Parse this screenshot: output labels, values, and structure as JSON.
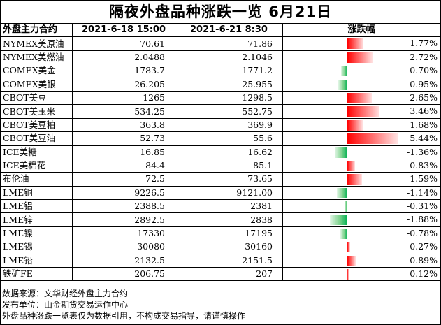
{
  "title": "隔夜外盘品种涨跌一览 6月21日",
  "headers": [
    "外盘主力合约",
    "2021-6-18 15:00",
    "2021-6-21 8:30",
    "涨跌幅"
  ],
  "rows": [
    {
      "name": "NYMEX美原油",
      "prev": "70.61",
      "curr": "71.86",
      "pct": "1.77%"
    },
    {
      "name": "NYMEX美燃油",
      "prev": "2.0488",
      "curr": "2.1046",
      "pct": "2.72%"
    },
    {
      "name": "COMEX美金",
      "prev": "1783.7",
      "curr": "1771.2",
      "pct": "-0.70%"
    },
    {
      "name": "COMEX美银",
      "prev": "26.205",
      "curr": "25.955",
      "pct": "-0.95%"
    },
    {
      "name": "CBOT美豆",
      "prev": "1265",
      "curr": "1298.5",
      "pct": "2.65%"
    },
    {
      "name": "CBOT美玉米",
      "prev": "534.25",
      "curr": "552.75",
      "pct": "3.46%"
    },
    {
      "name": "CBOT美豆粕",
      "prev": "363.8",
      "curr": "369.9",
      "pct": "1.68%"
    },
    {
      "name": "CBOT美豆油",
      "prev": "52.73",
      "curr": "55.6",
      "pct": "5.44%"
    },
    {
      "name": "ICE美糖",
      "prev": "16.85",
      "curr": "16.62",
      "pct": "-1.36%"
    },
    {
      "name": "ICE美棉花",
      "prev": "84.4",
      "curr": "85.1",
      "pct": "0.83%"
    },
    {
      "name": "布伦油",
      "prev": "72.5",
      "curr": "73.65",
      "pct": "1.59%"
    },
    {
      "name": "LME铜",
      "prev": "9226.5",
      "curr": "9121.00",
      "pct": "-1.14%"
    },
    {
      "name": "LME铝",
      "prev": "2388.5",
      "curr": "2381",
      "pct": "-0.31%"
    },
    {
      "name": "LME锌",
      "prev": "2892.5",
      "curr": "2838",
      "pct": "-1.88%"
    },
    {
      "name": "LME镍",
      "prev": "17330",
      "curr": "17195",
      "pct": "-0.78%"
    },
    {
      "name": "LME锡",
      "prev": "30080",
      "curr": "30160",
      "pct": "0.27%"
    },
    {
      "name": "LME铅",
      "prev": "2132.5",
      "curr": "2151.5",
      "pct": "0.89%"
    },
    {
      "name": "铁矿FE",
      "prev": "206.75",
      "curr": "207",
      "pct": "0.12%"
    }
  ],
  "notes": [
    "数据来源：文华财经外盘主力合约",
    "发布单位：山金期货交易运作中心",
    "外盘品种涨跌一览表仅为数据引用，不构成交易指导，请谨慎操作"
  ],
  "chart_data": {
    "type": "bar",
    "title": "隔夜外盘品种涨跌一览 6月21日",
    "categories": [
      "NYMEX美原油",
      "NYMEX美燃油",
      "COMEX美金",
      "COMEX美银",
      "CBOT美豆",
      "CBOT美玉米",
      "CBOT美豆粕",
      "CBOT美豆油",
      "ICE美糖",
      "ICE美棉花",
      "布伦油",
      "LME铜",
      "LME铝",
      "LME锌",
      "LME镍",
      "LME锡",
      "LME铅",
      "铁矿FE"
    ],
    "series": [
      {
        "name": "涨跌幅",
        "values": [
          1.77,
          2.72,
          -0.7,
          -0.95,
          2.65,
          3.46,
          1.68,
          5.44,
          -1.36,
          0.83,
          1.59,
          -1.14,
          -0.31,
          -1.88,
          -0.78,
          0.27,
          0.89,
          0.12
        ]
      }
    ],
    "colors": {
      "positive": "#ff0000",
      "negative": "#00b050"
    }
  }
}
